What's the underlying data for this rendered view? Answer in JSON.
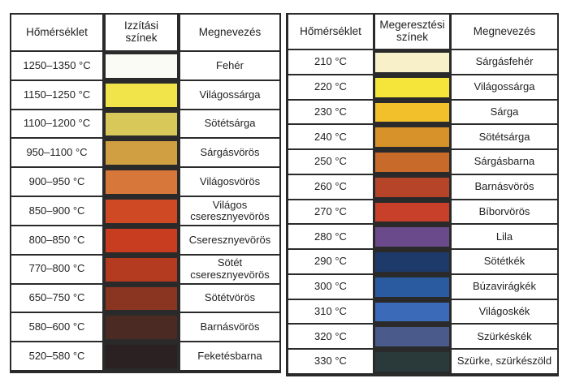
{
  "tables": [
    {
      "header": [
        "Hőmérséklet",
        "Izzítási színek",
        "Megnevezés"
      ],
      "rows": [
        {
          "temp": "1250–1350 °C",
          "color": "#fbfbf6",
          "name": "Fehér"
        },
        {
          "temp": "1150–1250 °C",
          "color": "#f0e44a",
          "name": "Világossárga"
        },
        {
          "temp": "1100–1200 °C",
          "color": "#d8c85a",
          "name": "Sötétsárga"
        },
        {
          "temp": "950–1100 °C",
          "color": "#cf9f42",
          "name": "Sárgásvörös"
        },
        {
          "temp": "900–950 °C",
          "color": "#d8773a",
          "name": "Világosvörös"
        },
        {
          "temp": "850–900 °C",
          "color": "#cf4a24",
          "name": "Világos cseresznyevörös"
        },
        {
          "temp": "800–850 °C",
          "color": "#c83c20",
          "name": "Cseresznyevörös"
        },
        {
          "temp": "770–800 °C",
          "color": "#b43a20",
          "name": "Sötét cseresznyevörös"
        },
        {
          "temp": "650–750 °C",
          "color": "#8a3422",
          "name": "Sötétvörös"
        },
        {
          "temp": "580–600 °C",
          "color": "#4a2a22",
          "name": "Barnásvörös"
        },
        {
          "temp": "520–580 °C",
          "color": "#2b2022",
          "name": "Feketésbarna"
        }
      ]
    },
    {
      "header": [
        "Hőmérséklet",
        "Megeresztési színek",
        "Megnevezés"
      ],
      "rows": [
        {
          "temp": "210 °C",
          "color": "#f7f0c8",
          "name": "Sárgásfehér"
        },
        {
          "temp": "220 °C",
          "color": "#f5e43a",
          "name": "Világossárga"
        },
        {
          "temp": "230 °C",
          "color": "#f2c02a",
          "name": "Sárga"
        },
        {
          "temp": "240 °C",
          "color": "#d8922a",
          "name": "Sötétsárga"
        },
        {
          "temp": "250 °C",
          "color": "#c86a2a",
          "name": "Sárgásbarna"
        },
        {
          "temp": "260 °C",
          "color": "#b64428",
          "name": "Barnásvörös"
        },
        {
          "temp": "270 °C",
          "color": "#c8402a",
          "name": "Bíborvörös"
        },
        {
          "temp": "280 °C",
          "color": "#6a4a8a",
          "name": "Lila"
        },
        {
          "temp": "290 °C",
          "color": "#1e3a6a",
          "name": "Sötétkék"
        },
        {
          "temp": "300 °C",
          "color": "#2a5aa0",
          "name": "Búzavirágkék"
        },
        {
          "temp": "310 °C",
          "color": "#3a6ab8",
          "name": "Világoskék"
        },
        {
          "temp": "320 °C",
          "color": "#4a5a8a",
          "name": "Szürkéskék"
        },
        {
          "temp": "330 °C",
          "color": "#2a3a3a",
          "name": "Szürke, szürkészöld"
        }
      ]
    }
  ]
}
